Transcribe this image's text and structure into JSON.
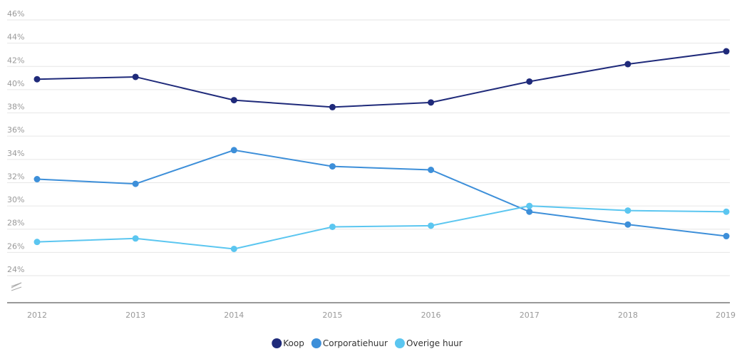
{
  "chart_data": {
    "type": "line",
    "categories": [
      "2012",
      "2013",
      "2014",
      "2015",
      "2016",
      "2017",
      "2018",
      "2019"
    ],
    "series": [
      {
        "name": "Koop",
        "color": "#1f2a7a",
        "values": [
          40.9,
          41.1,
          39.1,
          38.5,
          38.9,
          40.7,
          42.2,
          43.3
        ]
      },
      {
        "name": "Corporatiehuur",
        "color": "#3d8fd9",
        "values": [
          32.3,
          31.9,
          34.8,
          33.4,
          33.1,
          29.5,
          28.4,
          27.4
        ]
      },
      {
        "name": "Overige huur",
        "color": "#5bc6f0",
        "values": [
          26.9,
          27.2,
          26.3,
          28.2,
          28.3,
          30.0,
          29.6,
          29.5
        ]
      }
    ],
    "ylim": [
      24,
      46
    ],
    "yticks": [
      {
        "value": 24,
        "label": "24%"
      },
      {
        "value": 26,
        "label": "26%"
      },
      {
        "value": 28,
        "label": "28%"
      },
      {
        "value": 30,
        "label": "30%"
      },
      {
        "value": 32,
        "label": "32%"
      },
      {
        "value": 34,
        "label": "34%"
      },
      {
        "value": 36,
        "label": "36%"
      },
      {
        "value": 38,
        "label": "38%"
      },
      {
        "value": 40,
        "label": "40%"
      },
      {
        "value": 42,
        "label": "42%"
      },
      {
        "value": 44,
        "label": "44%"
      },
      {
        "value": 46,
        "label": "46%"
      }
    ],
    "grid": true,
    "legend": "bottom"
  }
}
